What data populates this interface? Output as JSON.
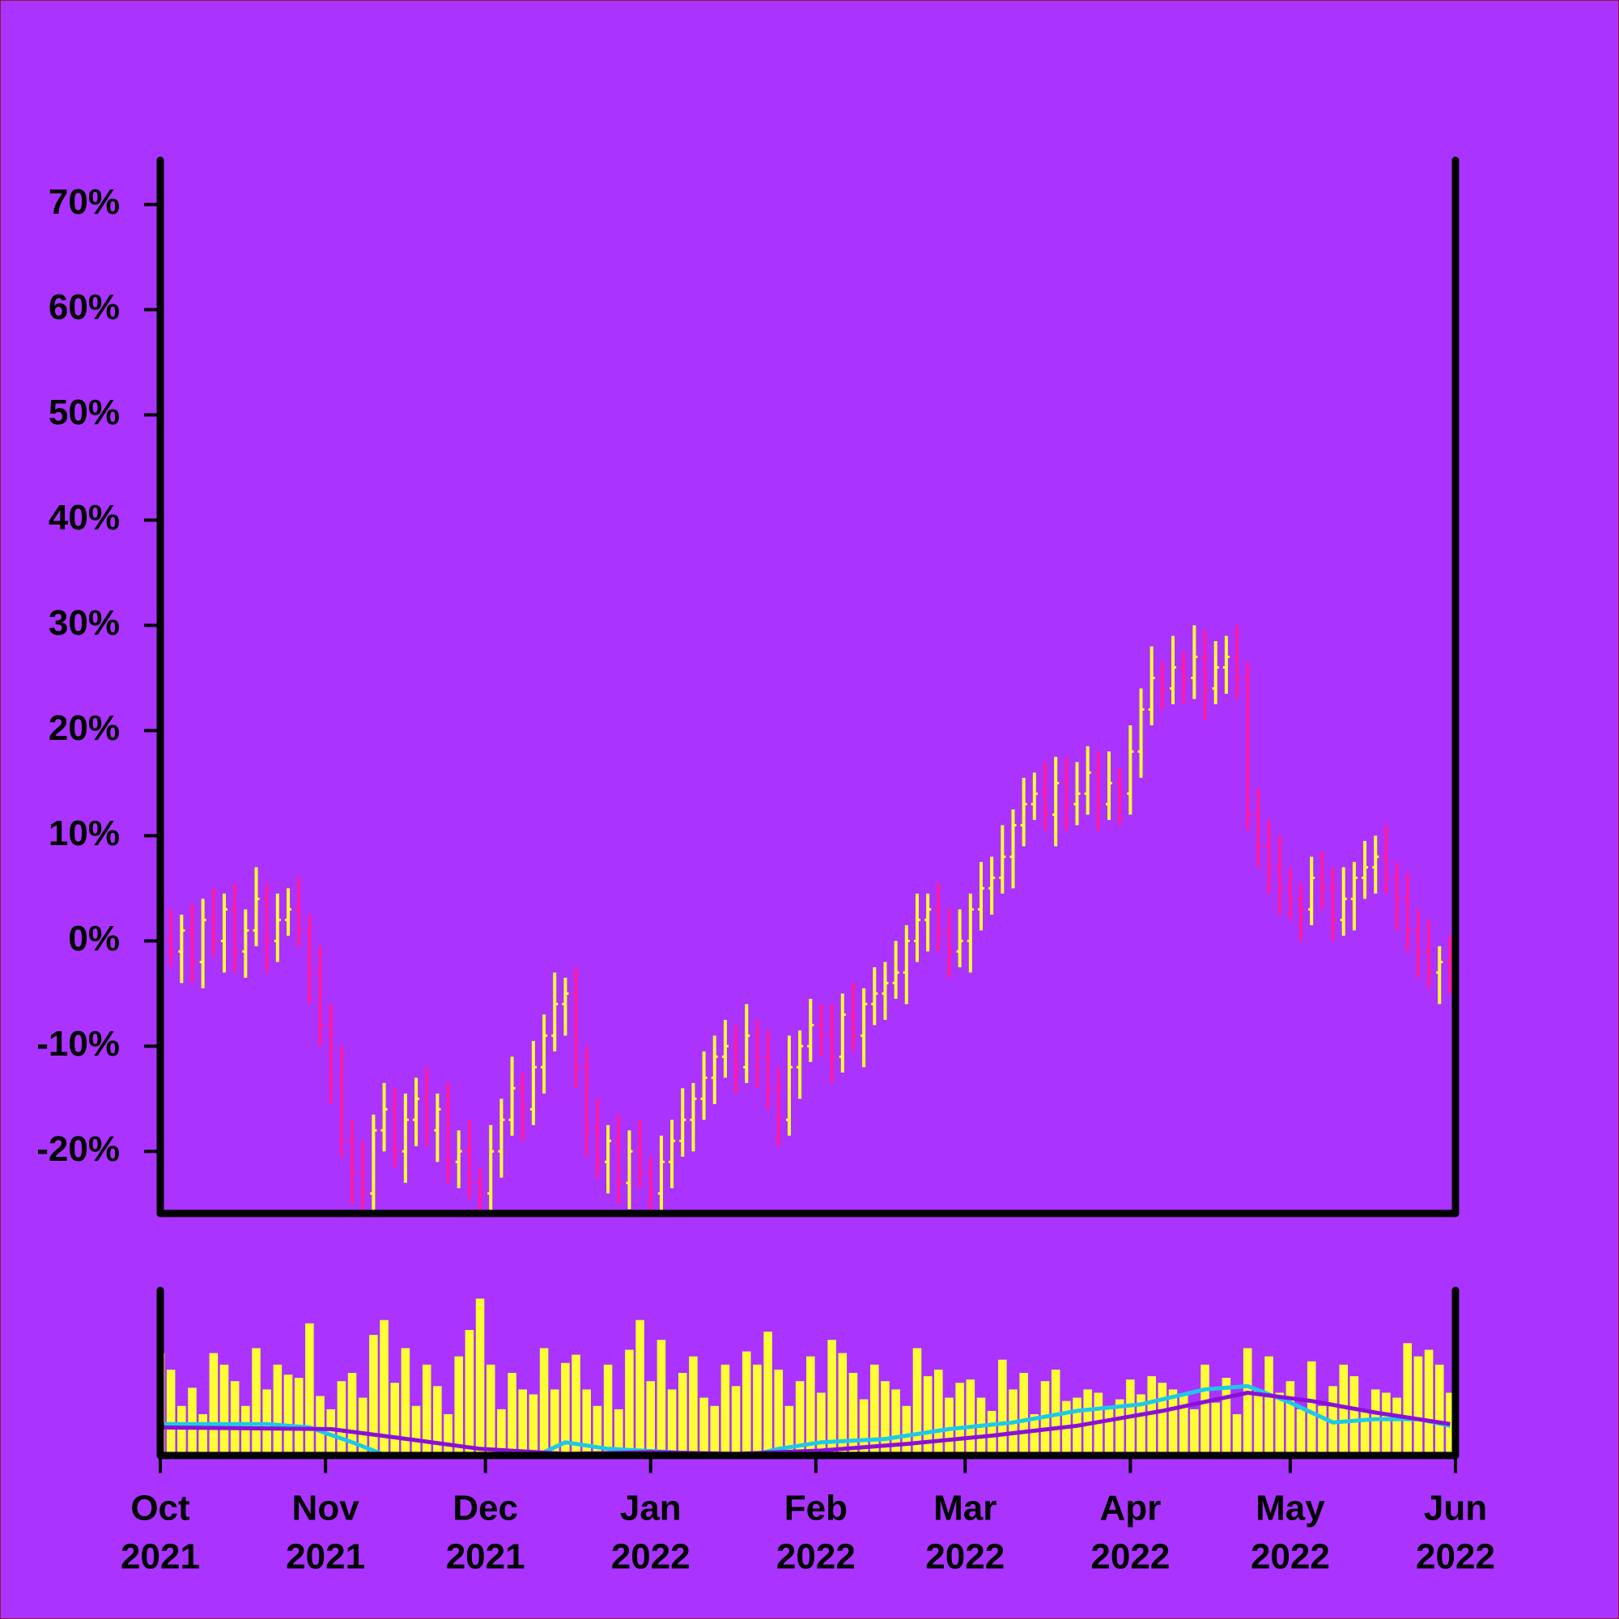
{
  "chart_data": [
    {
      "type": "ohlc",
      "xlim": [
        0,
        121.5
      ],
      "ylim": [
        -25.9,
        74.2
      ],
      "yticks": [
        {
          "value": -20,
          "label": "-20%"
        },
        {
          "value": -10,
          "label": "-10%"
        },
        {
          "value": 0,
          "label": "0%"
        },
        {
          "value": 10,
          "label": "10%"
        },
        {
          "value": 20,
          "label": "20%"
        },
        {
          "value": 30,
          "label": "30%"
        },
        {
          "value": 40,
          "label": "40%"
        },
        {
          "value": 50,
          "label": "50%"
        },
        {
          "value": 60,
          "label": "60%"
        },
        {
          "value": 70,
          "label": "70%"
        }
      ],
      "up_color": "#ffff33",
      "down_color": "#ff1aa0",
      "open": [
        0.5,
        0,
        -1,
        1,
        -2,
        2,
        0,
        3,
        -1,
        1,
        4,
        0,
        2,
        3,
        1,
        -3,
        -8,
        -13,
        -19,
        -22,
        -24,
        -18,
        -16,
        -20,
        -17,
        -15,
        -18,
        -16,
        -21,
        -20,
        -23,
        -24,
        -20,
        -17,
        -14,
        -16,
        -12,
        -9,
        -6,
        -5,
        -12,
        -18,
        -21,
        -19,
        -23,
        -20,
        -22,
        -24,
        -21,
        -19,
        -17,
        -15,
        -13,
        -11,
        -10,
        -12,
        -9,
        -11,
        -14,
        -17,
        -12,
        -10,
        -8,
        -9,
        -11,
        -7,
        -9,
        -6,
        -5,
        -4,
        -3,
        0,
        2,
        3,
        1,
        -1,
        0,
        3,
        5,
        6,
        8,
        11,
        13,
        14,
        12,
        15,
        13,
        14,
        16,
        13,
        15,
        14,
        18,
        22,
        25,
        24,
        26,
        25,
        27,
        24,
        26,
        27,
        25,
        12,
        9,
        7,
        5,
        4,
        3,
        6,
        5,
        2,
        4,
        6,
        7,
        8,
        6,
        4,
        1,
        -1,
        -3,
        -2
      ],
      "high": [
        2.5,
        3,
        2.5,
        3.5,
        4,
        5,
        4.5,
        5.5,
        3,
        7,
        5.5,
        4.5,
        5,
        6,
        2.5,
        -0.5,
        -6,
        -10,
        -17,
        -19,
        -16.5,
        -13.5,
        -14,
        -14.5,
        -13,
        -12,
        -14.5,
        -13.5,
        -18,
        -17,
        -21.5,
        -17.5,
        -15,
        -11,
        -12.5,
        -9.5,
        -7,
        -3,
        -3.5,
        -2.5,
        -10,
        -15,
        -17.5,
        -16.5,
        -18,
        -17,
        -20.5,
        -18.5,
        -17,
        -14,
        -13.5,
        -10.5,
        -9,
        -7.5,
        -8,
        -6,
        -7.5,
        -8.5,
        -12,
        -9,
        -8.5,
        -5.5,
        -6,
        -6,
        -5,
        -4,
        -4.5,
        -2.5,
        -2,
        0,
        1.5,
        4.5,
        4.5,
        5.5,
        3,
        3,
        4.5,
        7.5,
        8,
        11,
        12.5,
        15.5,
        16,
        17,
        17.5,
        17.5,
        17,
        18.5,
        18,
        18,
        16.5,
        20.5,
        24,
        28,
        26.5,
        29,
        27.5,
        30,
        29.5,
        28.5,
        29,
        30,
        26.5,
        14.5,
        11.5,
        10,
        7,
        5.5,
        8,
        8.5,
        7,
        7,
        7.5,
        9.5,
        10,
        11,
        7.5,
        6.5,
        3,
        2,
        -0.5,
        0.5
      ],
      "low": [
        -2.5,
        -2.5,
        -4,
        -4,
        -4.5,
        -1.5,
        -3,
        -3,
        -3.5,
        -0.5,
        -3,
        -2,
        0.5,
        -0.5,
        -6,
        -10,
        -15.5,
        -20.5,
        -25,
        -25.5,
        -27,
        -20,
        -21.5,
        -23,
        -19.5,
        -19.5,
        -21,
        -23,
        -23.5,
        -24.5,
        -27,
        -26,
        -22.5,
        -18.5,
        -19,
        -17.5,
        -14.5,
        -10.5,
        -9,
        -14,
        -20.5,
        -22.5,
        -24,
        -25,
        -25.5,
        -23.5,
        -27,
        -26,
        -23.5,
        -20.5,
        -20,
        -17,
        -15.5,
        -13,
        -14.5,
        -13.5,
        -14,
        -16,
        -19.5,
        -18.5,
        -15,
        -11.5,
        -11,
        -13.5,
        -12.5,
        -10.5,
        -12,
        -8,
        -7.5,
        -5.5,
        -6,
        -2,
        -1,
        -1,
        -3.5,
        -2.5,
        -3,
        1,
        2.5,
        4.5,
        5,
        9,
        11.5,
        10.5,
        9,
        10.5,
        11,
        12,
        10.5,
        11.5,
        11,
        12,
        15.5,
        20.5,
        22,
        22.5,
        22.5,
        23,
        21,
        22.5,
        23.5,
        23,
        10.5,
        7,
        4.5,
        2.5,
        2,
        0,
        1.5,
        3,
        0,
        0.5,
        1,
        4,
        4.5,
        4.5,
        1,
        -1,
        -3.5,
        -4.5,
        -6,
        -5
      ],
      "close": [
        0,
        -1,
        1,
        -2,
        2,
        0,
        3,
        -1,
        1,
        4,
        0,
        2,
        3,
        1,
        -3,
        -8,
        -13,
        -19,
        -22,
        -24,
        -18,
        -16,
        -20,
        -17,
        -15,
        -18,
        -16,
        -21,
        -20,
        -23,
        -24,
        -20,
        -17,
        -14,
        -16,
        -12,
        -9,
        -6,
        -5,
        -12,
        -18,
        -21,
        -19,
        -23,
        -20,
        -22,
        -24,
        -21,
        -19,
        -17,
        -15,
        -13,
        -11,
        -10,
        -12,
        -9,
        -11,
        -14,
        -17,
        -12,
        -10,
        -8,
        -9,
        -11,
        -7,
        -9,
        -6,
        -5,
        -4,
        -3,
        0,
        2,
        3,
        1,
        -1,
        0,
        3,
        5,
        6,
        8,
        11,
        13,
        14,
        12,
        15,
        13,
        14,
        16,
        13,
        15,
        14,
        18,
        22,
        25,
        24,
        26,
        25,
        27,
        24,
        26,
        27,
        25,
        12,
        9,
        7,
        5,
        4,
        3,
        6,
        5,
        2,
        4,
        6,
        7,
        8,
        6,
        4,
        1,
        -1,
        -3,
        -2,
        -3
      ]
    },
    {
      "type": "bar",
      "xlim": [
        0,
        121.5
      ],
      "ylim": [
        0,
        100
      ],
      "color": "#ffff33",
      "xticks": [
        {
          "value": 0,
          "label": [
            "Oct",
            "2021"
          ]
        },
        {
          "value": 15.5,
          "label": [
            "Nov",
            "2021"
          ]
        },
        {
          "value": 30.5,
          "label": [
            "Dec",
            "2021"
          ]
        },
        {
          "value": 46,
          "label": [
            "Jan",
            "2022"
          ]
        },
        {
          "value": 61.5,
          "label": [
            "Feb",
            "2022"
          ]
        },
        {
          "value": 75.5,
          "label": [
            "Mar",
            "2022"
          ]
        },
        {
          "value": 91,
          "label": [
            "Apr",
            "2022"
          ]
        },
        {
          "value": 106,
          "label": [
            "May",
            "2022"
          ]
        },
        {
          "value": 121.5,
          "label": [
            "Jun",
            "2022"
          ]
        }
      ],
      "values": [
        62,
        52,
        30,
        41,
        25,
        62,
        55,
        45,
        30,
        65,
        40,
        55,
        49,
        47,
        80,
        36,
        28,
        45,
        50,
        35,
        73,
        82,
        44,
        65,
        30,
        55,
        42,
        25,
        60,
        76,
        95,
        55,
        28,
        50,
        40,
        37,
        65,
        40,
        56,
        61,
        40,
        30,
        55,
        28,
        64,
        82,
        45,
        70,
        40,
        50,
        60,
        35,
        30,
        55,
        42,
        63,
        55,
        75,
        52,
        30,
        45,
        60,
        38,
        70,
        62,
        50,
        34,
        55,
        45,
        40,
        30,
        65,
        48,
        52,
        35,
        44,
        46,
        35,
        27,
        58,
        40,
        50,
        25,
        45,
        52,
        33,
        35,
        40,
        38,
        30,
        34,
        46,
        37,
        48,
        44,
        40,
        37,
        28,
        55,
        32,
        47,
        25,
        65,
        40,
        60,
        38,
        45,
        28,
        57,
        30,
        42,
        55,
        48,
        28,
        40,
        38,
        35,
        68,
        60,
        64,
        55,
        38
      ],
      "lines": [
        {
          "color": "#1ec8e8",
          "x": [
            0,
            10,
            14,
            18,
            22,
            28,
            34,
            38,
            42,
            48,
            54,
            58,
            62,
            68,
            74,
            80,
            86,
            92,
            98,
            102,
            106,
            110,
            114,
            118,
            121
          ],
          "values": [
            19,
            19,
            17,
            8,
            -2,
            -3,
            -4,
            8,
            4,
            2,
            -2,
            4,
            8,
            10,
            16,
            20,
            27,
            31,
            40,
            42,
            32,
            20,
            22,
            22,
            18
          ]
        },
        {
          "color": "#8a10d8",
          "x": [
            0,
            16,
            22,
            30,
            38,
            46,
            54,
            62,
            70,
            78,
            86,
            94,
            102,
            108,
            114,
            121
          ],
          "values": [
            17,
            16,
            11,
            4,
            1,
            2,
            1,
            3,
            7,
            12,
            18,
            27,
            38,
            33,
            26,
            19
          ]
        }
      ]
    }
  ]
}
